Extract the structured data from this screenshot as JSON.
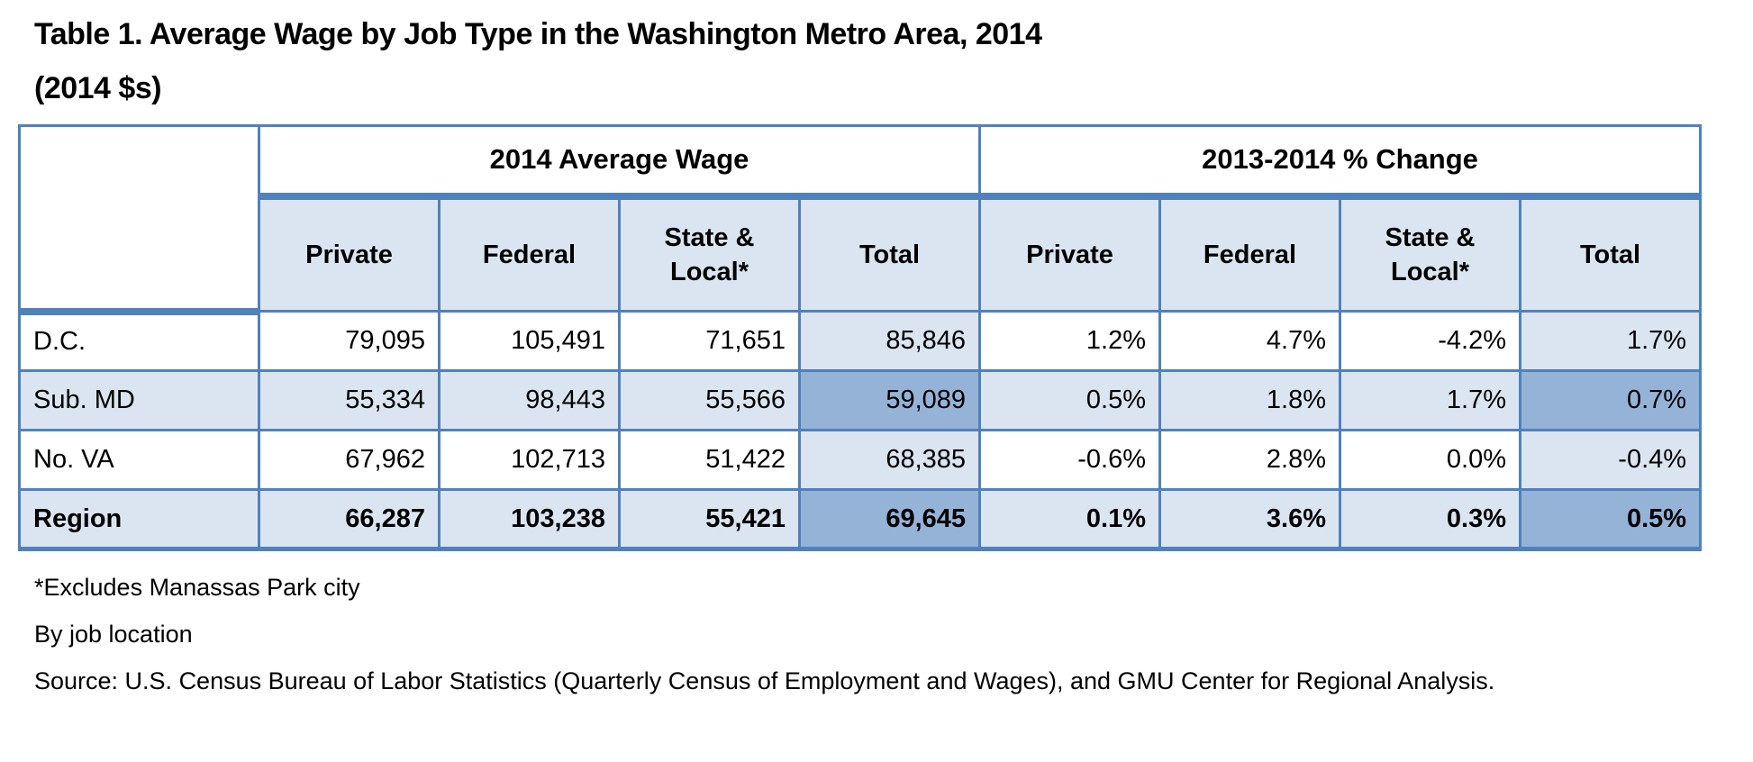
{
  "title": {
    "line1": "Table 1. Average Wage by Job Type in the Washington Metro Area, 2014",
    "line2": "(2014 $s)"
  },
  "table": {
    "group_headers": [
      "2014 Average Wage",
      "2013-2014 % Change"
    ],
    "sub_headers": [
      "Private",
      "Federal",
      "State & Local*",
      "Total",
      "Private",
      "Federal",
      "State & Local*",
      "Total"
    ],
    "rows": [
      {
        "label": "D.C.",
        "wage": [
          "79,095",
          "105,491",
          "71,651",
          "85,846"
        ],
        "change": [
          "1.2%",
          "4.7%",
          "-4.2%",
          "1.7%"
        ]
      },
      {
        "label": "Sub. MD",
        "wage": [
          "55,334",
          "98,443",
          "55,566",
          "59,089"
        ],
        "change": [
          "0.5%",
          "1.8%",
          "1.7%",
          "0.7%"
        ]
      },
      {
        "label": "No. VA",
        "wage": [
          "67,962",
          "102,713",
          "51,422",
          "68,385"
        ],
        "change": [
          "-0.6%",
          "2.8%",
          "0.0%",
          "-0.4%"
        ]
      },
      {
        "label": "Region",
        "wage": [
          "66,287",
          "103,238",
          "55,421",
          "69,645"
        ],
        "change": [
          "0.1%",
          "3.6%",
          "0.3%",
          "0.5%"
        ]
      }
    ]
  },
  "footnotes": [
    "*Excludes Manassas Park city",
    "By job location",
    "Source: U.S. Census Bureau of Labor Statistics (Quarterly Census of Employment and Wages), and GMU Center for Regional Analysis."
  ],
  "colors": {
    "accent_border": "#4F81BD",
    "light_fill": "#DBE5F1",
    "medium_fill": "#95B3D7",
    "text_color": "#000000"
  },
  "chart_data": {
    "type": "table",
    "title": "Table 1. Average Wage by Job Type in the Washington Metro Area, 2014 (2014 $s)",
    "column_groups": [
      "2014 Average Wage",
      "2013-2014 % Change"
    ],
    "columns": [
      "",
      "Private",
      "Federal",
      "State & Local*",
      "Total",
      "Private",
      "Federal",
      "State & Local*",
      "Total"
    ],
    "rows": [
      [
        "D.C.",
        79095,
        105491,
        71651,
        85846,
        "1.2%",
        "4.7%",
        "-4.2%",
        "1.7%"
      ],
      [
        "Sub. MD",
        55334,
        98443,
        55566,
        59089,
        "0.5%",
        "1.8%",
        "1.7%",
        "0.7%"
      ],
      [
        "No. VA",
        67962,
        102713,
        51422,
        68385,
        "-0.6%",
        "2.8%",
        "0.0%",
        "-0.4%"
      ],
      [
        "Region",
        66287,
        103238,
        55421,
        69645,
        "0.1%",
        "3.6%",
        "0.3%",
        "0.5%"
      ]
    ],
    "notes": [
      "*Excludes Manassas Park city",
      "By job location"
    ],
    "source": "Source: U.S. Census Bureau of Labor Statistics (Quarterly Census of Employment and Wages), and GMU Center for Regional Analysis."
  }
}
